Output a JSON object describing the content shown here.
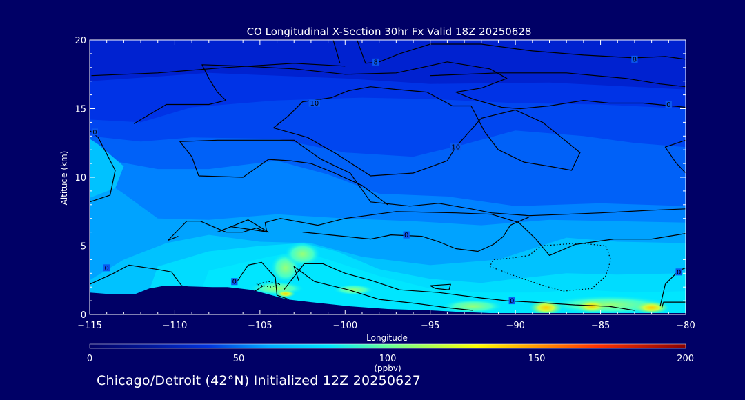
{
  "chart_data": {
    "type": "contour",
    "title": "CO Longitudinal X-Section 30hr  Fx Valid 18Z 20250628",
    "xlabel": "Longitude",
    "ylabel": "Altitude (km)",
    "xlim": [
      -115,
      -80
    ],
    "ylim": [
      0,
      20
    ],
    "x_ticks": [
      -115,
      -110,
      -105,
      -100,
      -95,
      -90,
      -85,
      -80
    ],
    "x_tick_labels": [
      "−115",
      "−110",
      "−105",
      "−100",
      "−95",
      "−90",
      "−85",
      "−80"
    ],
    "y_ticks": [
      0,
      5,
      10,
      15,
      20
    ],
    "y_tick_labels": [
      "0",
      "5",
      "10",
      "15",
      "20"
    ],
    "colorbar": {
      "range": [
        0,
        200
      ],
      "ticks": [
        0,
        50,
        100,
        150,
        200
      ],
      "tick_labels": [
        "0",
        "50",
        "100",
        "150",
        "200"
      ],
      "unit": "(ppbv)",
      "colors": [
        "#000066",
        "#0033dd",
        "#00ccff",
        "#66ff66",
        "#ffff00",
        "#ff6600",
        "#cc0000",
        "#880000"
      ]
    },
    "contour_labels": [
      {
        "text": "0",
        "lon": -114.7,
        "alt": 13.3
      },
      {
        "text": "8",
        "lon": -98.2,
        "alt": 18.4
      },
      {
        "text": "8",
        "lon": -83.0,
        "alt": 18.6
      },
      {
        "text": "10",
        "lon": -101.8,
        "alt": 15.4
      },
      {
        "text": "0",
        "lon": -81.0,
        "alt": 15.3
      },
      {
        "text": "10",
        "lon": -93.5,
        "alt": 12.2
      },
      {
        "text": "0",
        "lon": -96.4,
        "alt": 5.8
      },
      {
        "text": "0",
        "lon": -114.0,
        "alt": 3.4
      },
      {
        "text": "0",
        "lon": -106.5,
        "alt": 2.4
      },
      {
        "text": "0",
        "lon": -90.2,
        "alt": 1.0
      },
      {
        "text": "0",
        "lon": -80.4,
        "alt": 3.1
      }
    ],
    "contour_lines": [
      [
        [
          -99.3,
          20
        ],
        [
          -98.8,
          18.3
        ],
        [
          -98,
          18.4
        ],
        [
          -96.8,
          19
        ],
        [
          -95,
          19.7
        ],
        [
          -92,
          19.7
        ],
        [
          -89,
          19.2
        ],
        [
          -86,
          18.9
        ],
        [
          -83,
          18.7
        ],
        [
          -81.2,
          18.8
        ],
        [
          -80,
          18.6
        ]
      ],
      [
        [
          -114.9,
          17.4
        ],
        [
          -111,
          17.6
        ],
        [
          -107,
          18.0
        ],
        [
          -103,
          18.3
        ],
        [
          -100,
          18.1
        ]
      ],
      [
        [
          -95,
          17.4
        ],
        [
          -91,
          17.6
        ],
        [
          -87,
          17.6
        ],
        [
          -83.5,
          17.2
        ],
        [
          -81.5,
          16.8
        ],
        [
          -80,
          16.6
        ]
      ],
      [
        [
          -100.7,
          20
        ],
        [
          -100.3,
          18.3
        ]
      ],
      [
        [
          -112.4,
          13.9
        ],
        [
          -110.5,
          15.3
        ],
        [
          -108,
          15.3
        ],
        [
          -107,
          15.6
        ],
        [
          -107.5,
          16.2
        ],
        [
          -108,
          17.2
        ],
        [
          -108.4,
          18.2
        ],
        [
          -106,
          18.1
        ],
        [
          -103,
          17.9
        ],
        [
          -100,
          17.5
        ],
        [
          -97,
          17.6
        ],
        [
          -94,
          18.4
        ],
        [
          -91.5,
          17.9
        ],
        [
          -90.5,
          17.2
        ],
        [
          -92,
          16.5
        ],
        [
          -93.5,
          16.2
        ],
        [
          -92.5,
          15.7
        ],
        [
          -90.8,
          15.1
        ],
        [
          -89.7,
          15.0
        ],
        [
          -88,
          15.2
        ],
        [
          -86,
          15.6
        ],
        [
          -84.5,
          15.4
        ],
        [
          -82.5,
          15.4
        ],
        [
          -80,
          15.1
        ]
      ],
      [
        [
          -104.2,
          13.6
        ],
        [
          -103.3,
          14.5
        ],
        [
          -102.5,
          15.5
        ],
        [
          -100.8,
          15.8
        ],
        [
          -99.8,
          16.3
        ],
        [
          -98.5,
          16.6
        ],
        [
          -97,
          16.4
        ],
        [
          -95.2,
          16.2
        ],
        [
          -93.7,
          15.2
        ],
        [
          -92.6,
          15.2
        ],
        [
          -91.8,
          13.3
        ],
        [
          -91,
          12.0
        ],
        [
          -89.5,
          11.1
        ],
        [
          -88,
          10.8
        ],
        [
          -86.7,
          10.5
        ],
        [
          -86.2,
          11.8
        ],
        [
          -87.2,
          12.8
        ],
        [
          -88.4,
          14.0
        ],
        [
          -90.0,
          14.9
        ],
        [
          -92.0,
          14.3
        ],
        [
          -93.5,
          12.2
        ],
        [
          -94,
          11.2
        ],
        [
          -96,
          10.3
        ],
        [
          -98.5,
          10.1
        ],
        [
          -100.5,
          11.7
        ],
        [
          -102.2,
          12.9
        ],
        [
          -104.2,
          13.6
        ]
      ],
      [
        [
          -108.6,
          10.1
        ],
        [
          -109.0,
          11.5
        ],
        [
          -109.7,
          12.6
        ],
        [
          -107.5,
          12.7
        ],
        [
          -103,
          12.7
        ],
        [
          -101.4,
          11.3
        ],
        [
          -99.7,
          10.3
        ],
        [
          -98.5,
          8.2
        ],
        [
          -96.2,
          7.9
        ],
        [
          -94.5,
          8.1
        ],
        [
          -92.6,
          7.7
        ],
        [
          -91.4,
          7.4
        ],
        [
          -89.2,
          7.2
        ],
        [
          -87,
          7.3
        ],
        [
          -85,
          7.4
        ],
        [
          -82,
          7.6
        ],
        [
          -80,
          7.7
        ]
      ],
      [
        [
          -108.6,
          10.1
        ],
        [
          -106,
          10.0
        ],
        [
          -104.5,
          11.3
        ],
        [
          -103.2,
          11.2
        ],
        [
          -102.0,
          11.0
        ],
        [
          -100.8,
          10.4
        ],
        [
          -99.0,
          9.4
        ],
        [
          -97.5,
          8.0
        ]
      ],
      [
        [
          -115,
          8.2
        ],
        [
          -113.8,
          8.7
        ],
        [
          -113.5,
          10.5
        ],
        [
          -114.5,
          12.9
        ],
        [
          -115,
          13.4
        ]
      ],
      [
        [
          -80,
          12.7
        ],
        [
          -81.2,
          12.2
        ],
        [
          -80.6,
          11.1
        ],
        [
          -80,
          10.3
        ]
      ],
      [
        [
          -109.8,
          5.7
        ],
        [
          -110.4,
          5.4
        ],
        [
          -109.3,
          6.8
        ],
        [
          -108.5,
          6.8
        ],
        [
          -107.0,
          6.0
        ],
        [
          -106.0,
          6.0
        ],
        [
          -105.2,
          6.3
        ],
        [
          -104.6,
          6.0
        ],
        [
          -104.7,
          6.7
        ],
        [
          -103.8,
          7.0
        ],
        [
          -101.6,
          6.5
        ],
        [
          -100.0,
          7.0
        ],
        [
          -97.0,
          7.5
        ],
        [
          -93.5,
          7.4
        ],
        [
          -91.4,
          7.3
        ],
        [
          -89.8,
          6.7
        ],
        [
          -88.8,
          5.5
        ],
        [
          -88.0,
          4.3
        ],
        [
          -86.5,
          5.1
        ],
        [
          -84.2,
          5.5
        ],
        [
          -82.0,
          5.5
        ],
        [
          -80,
          5.9
        ]
      ],
      [
        [
          -107.5,
          6.0
        ],
        [
          -106.7,
          6.4
        ],
        [
          -104.5,
          6.0
        ],
        [
          -105.7,
          6.9
        ],
        [
          -107.5,
          6.0
        ]
      ],
      [
        [
          -102.5,
          6.0
        ],
        [
          -98.5,
          5.5
        ],
        [
          -97.3,
          5.8
        ],
        [
          -95.5,
          5.7
        ],
        [
          -94.5,
          5.3
        ],
        [
          -93.5,
          4.8
        ],
        [
          -92.2,
          4.6
        ],
        [
          -91.3,
          5.1
        ],
        [
          -90.7,
          5.7
        ],
        [
          -90.3,
          6.5
        ],
        [
          -89.2,
          7.1
        ]
      ],
      [
        [
          -115,
          2.2
        ],
        [
          -113.6,
          3.0
        ],
        [
          -112.7,
          3.6
        ],
        [
          -111.1,
          3.3
        ],
        [
          -110.2,
          3.1
        ],
        [
          -109.6,
          2.1
        ],
        [
          -107.5,
          1.6
        ],
        [
          -106.0,
          1.6
        ],
        [
          -105.3,
          1.7
        ],
        [
          -104.8,
          2.1
        ]
      ],
      [
        [
          -106.4,
          2.3
        ],
        [
          -105.7,
          3.6
        ],
        [
          -104.9,
          3.8
        ],
        [
          -104.1,
          2.7
        ],
        [
          -104.0,
          1.4
        ],
        [
          -103.3,
          1.1
        ]
      ],
      [
        [
          -103.6,
          1.8
        ],
        [
          -102.4,
          3.7
        ],
        [
          -101.3,
          3.7
        ],
        [
          -100.0,
          3.0
        ],
        [
          -98.5,
          2.5
        ],
        [
          -96.8,
          1.8
        ],
        [
          -94.5,
          1.6
        ],
        [
          -92.0,
          1.2
        ],
        [
          -90.5,
          1.0
        ],
        [
          -89.0,
          0.9
        ],
        [
          -86.5,
          0.7
        ],
        [
          -84.5,
          0.6
        ],
        [
          -83.0,
          0.3
        ]
      ],
      [
        [
          -102.7,
          2.4
        ],
        [
          -103.0,
          3.5
        ],
        [
          -101.8,
          2.4
        ],
        [
          -99.8,
          1.8
        ],
        [
          -98.0,
          1.1
        ],
        [
          -95.8,
          0.8
        ],
        [
          -94.0,
          0.5
        ],
        [
          -92.5,
          0.3
        ]
      ],
      [
        [
          -95.0,
          2.1
        ],
        [
          -93.8,
          2.2
        ],
        [
          -93.9,
          1.8
        ],
        [
          -94.7,
          1.9
        ],
        [
          -95.0,
          2.1
        ]
      ],
      [
        [
          -80,
          3.4
        ],
        [
          -80.4,
          3.2
        ],
        [
          -81.2,
          2.2
        ],
        [
          -81.5,
          0.6
        ]
      ],
      [
        [
          -81.4,
          0.5
        ],
        [
          -81.3,
          0.9
        ],
        [
          -80,
          0.9
        ]
      ]
    ],
    "dotted_lines": [
      [
        [
          -89.2,
          4.3
        ],
        [
          -88.5,
          5.0
        ],
        [
          -87.4,
          5.1
        ],
        [
          -86.2,
          5.2
        ],
        [
          -84.7,
          5.0
        ],
        [
          -84.4,
          4.0
        ],
        [
          -84.7,
          2.8
        ],
        [
          -85.5,
          1.9
        ],
        [
          -87.2,
          1.7
        ],
        [
          -88.6,
          2.2
        ],
        [
          -90.0,
          2.8
        ],
        [
          -91.5,
          3.5
        ],
        [
          -91.3,
          4.0
        ],
        [
          -90.3,
          4.1
        ],
        [
          -89.2,
          4.3
        ]
      ],
      [
        [
          -105.2,
          2.2
        ],
        [
          -104.5,
          2.4
        ],
        [
          -103.8,
          2.2
        ],
        [
          -104.4,
          2.0
        ],
        [
          -105.2,
          2.2
        ]
      ]
    ],
    "terrain": [
      [
        -115,
        1.6
      ],
      [
        -114,
        1.5
      ],
      [
        -112.3,
        1.5
      ],
      [
        -111.5,
        1.9
      ],
      [
        -110.6,
        2.1
      ],
      [
        -107.8,
        2.0
      ],
      [
        -106.9,
        2.0
      ],
      [
        -105.5,
        1.8
      ],
      [
        -104.3,
        1.4
      ],
      [
        -103.4,
        1.1
      ],
      [
        -102.0,
        0.9
      ],
      [
        -99.7,
        0.6
      ],
      [
        -97.5,
        0.4
      ],
      [
        -95.0,
        0.3
      ],
      [
        -93.5,
        0.2
      ],
      [
        -91.5,
        0.1
      ],
      [
        -80,
        0.1
      ]
    ]
  },
  "footer": {
    "caption": "Chicago/Detroit (42°N) Initialized 12Z 20250627"
  }
}
